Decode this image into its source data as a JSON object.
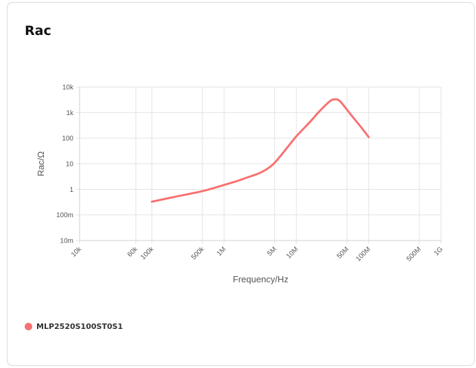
{
  "title": "Rac",
  "chart_data": {
    "type": "line",
    "xlabel": "Frequency/Hz",
    "ylabel": "Rac/Ω",
    "x_scale": "log",
    "y_scale": "log",
    "xlim": [
      10000,
      1000000000
    ],
    "ylim": [
      0.01,
      10000
    ],
    "x_ticks": [
      {
        "value": 10000,
        "label": "10k"
      },
      {
        "value": 60000,
        "label": "60k"
      },
      {
        "value": 100000,
        "label": "100k"
      },
      {
        "value": 500000,
        "label": "500k"
      },
      {
        "value": 1000000,
        "label": "1M"
      },
      {
        "value": 5000000,
        "label": "5M"
      },
      {
        "value": 10000000,
        "label": "10M"
      },
      {
        "value": 50000000,
        "label": "50M"
      },
      {
        "value": 100000000,
        "label": "100M"
      },
      {
        "value": 500000000,
        "label": "500M"
      },
      {
        "value": 1000000000,
        "label": "1G"
      }
    ],
    "y_ticks": [
      {
        "value": 10000,
        "label": "10k"
      },
      {
        "value": 1000,
        "label": "1k"
      },
      {
        "value": 100,
        "label": "100"
      },
      {
        "value": 10,
        "label": "10"
      },
      {
        "value": 1,
        "label": "1"
      },
      {
        "value": 0.1,
        "label": "100m"
      },
      {
        "value": 0.01,
        "label": "10m"
      }
    ],
    "grid": true,
    "legend_position": "bottom-left",
    "series": [
      {
        "name": "MLP2520S100ST0S1",
        "color": "#f87171",
        "points": [
          {
            "x": 100000,
            "y": 0.33
          },
          {
            "x": 150000,
            "y": 0.42
          },
          {
            "x": 200000,
            "y": 0.5
          },
          {
            "x": 300000,
            "y": 0.63
          },
          {
            "x": 500000,
            "y": 0.85
          },
          {
            "x": 700000,
            "y": 1.1
          },
          {
            "x": 1000000,
            "y": 1.5
          },
          {
            "x": 1500000,
            "y": 2.1
          },
          {
            "x": 2000000,
            "y": 2.8
          },
          {
            "x": 3000000,
            "y": 4.2
          },
          {
            "x": 4000000,
            "y": 6.5
          },
          {
            "x": 5000000,
            "y": 11
          },
          {
            "x": 6000000,
            "y": 20
          },
          {
            "x": 8000000,
            "y": 55
          },
          {
            "x": 10000000,
            "y": 120
          },
          {
            "x": 15000000,
            "y": 400
          },
          {
            "x": 20000000,
            "y": 1000
          },
          {
            "x": 25000000,
            "y": 1900
          },
          {
            "x": 30000000,
            "y": 3000
          },
          {
            "x": 35000000,
            "y": 3300
          },
          {
            "x": 40000000,
            "y": 2800
          },
          {
            "x": 50000000,
            "y": 1300
          },
          {
            "x": 60000000,
            "y": 680
          },
          {
            "x": 80000000,
            "y": 250
          },
          {
            "x": 100000000,
            "y": 110
          }
        ]
      }
    ]
  }
}
